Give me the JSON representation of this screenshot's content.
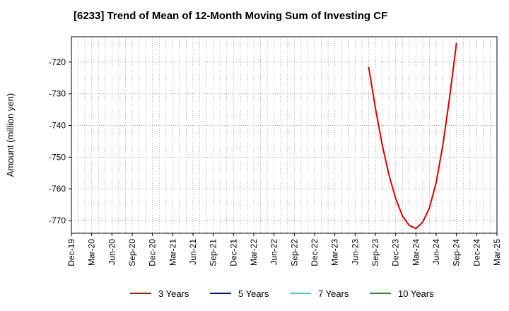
{
  "chart_data": {
    "type": "line",
    "title": "[6233]  Trend of Mean of 12-Month Moving Sum of Investing CF",
    "ylabel": "Amount (million yen)",
    "xlabel": "",
    "x_ticks": [
      "Dec-19",
      "Mar-20",
      "Jun-20",
      "Sep-20",
      "Dec-20",
      "Mar-21",
      "Jun-21",
      "Sep-21",
      "Dec-21",
      "Mar-22",
      "Jun-22",
      "Sep-22",
      "Dec-22",
      "Mar-23",
      "Jun-23",
      "Sep-23",
      "Dec-23",
      "Mar-24",
      "Jun-24",
      "Sep-24",
      "Dec-24",
      "Mar-25"
    ],
    "y_ticks": [
      -720,
      -730,
      -740,
      -750,
      -760,
      -770
    ],
    "ylim": [
      -774,
      -712
    ],
    "grid": true,
    "legend_position": "bottom",
    "colors": {
      "3 Years": "#dd0000",
      "5 Years": "#0000cc",
      "7 Years": "#00e5ee",
      "10 Years": "#228b22"
    },
    "series": [
      {
        "name": "3 Years",
        "color": "#dd0000",
        "x": [
          "Aug-23",
          "Sep-23",
          "Oct-23",
          "Nov-23",
          "Dec-23",
          "Jan-24",
          "Feb-24",
          "Mar-24",
          "Apr-24",
          "May-24",
          "Jun-24",
          "Jul-24",
          "Aug-24",
          "Sep-24"
        ],
        "values": [
          -721.5,
          -734.5,
          -746.0,
          -755.5,
          -763.0,
          -768.5,
          -771.5,
          -772.5,
          -770.5,
          -766.0,
          -758.0,
          -746.0,
          -731.0,
          -714.0
        ]
      },
      {
        "name": "5 Years",
        "color": "#0000cc",
        "x": [],
        "values": []
      },
      {
        "name": "7 Years",
        "color": "#00e5ee",
        "x": [],
        "values": []
      },
      {
        "name": "10 Years",
        "color": "#228b22",
        "x": [],
        "values": []
      }
    ]
  }
}
